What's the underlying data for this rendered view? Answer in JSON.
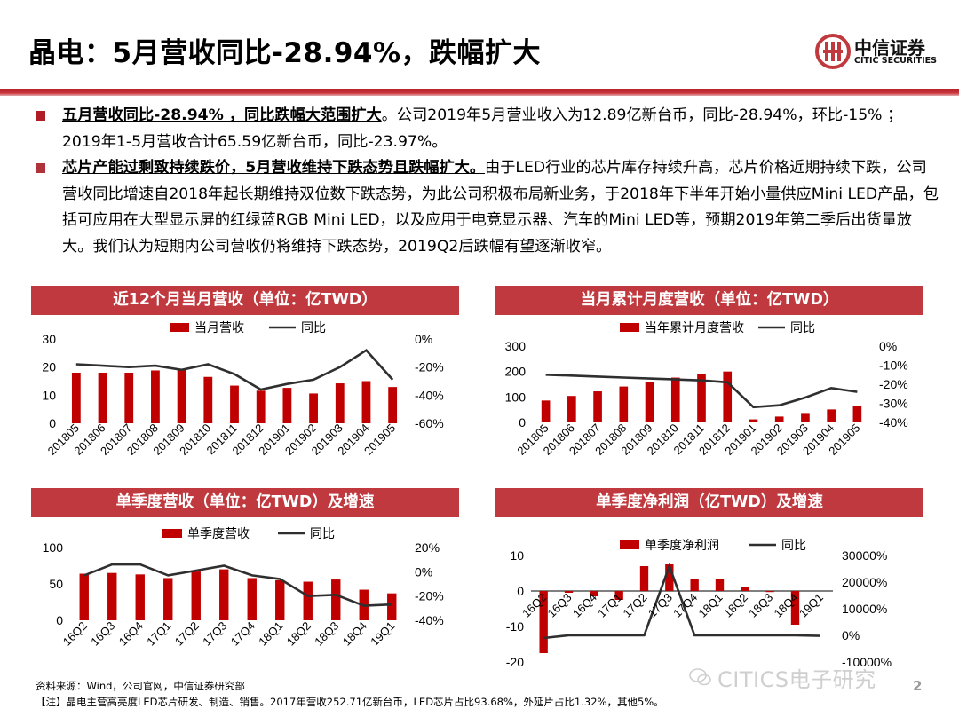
{
  "page": {
    "title": "晶电：5月营收同比-28.94%，跌幅扩大",
    "logo_cn": "中信证券",
    "logo_en": "CITIC SECURITIES",
    "page_number": "2",
    "watermark": "CITICS电子研究",
    "colors": {
      "brand_red": "#c0393e",
      "bar_red": "#c00000",
      "line_dark": "#2f2f2f"
    }
  },
  "bullets": [
    {
      "bold": "五月营收同比-28.94% ，同比跌幅大范围扩大",
      "text": "。公司2019年5月营业收入为12.89亿新台币，同比-28.94%，环比-15% ； 2019年1-5月营收合计65.59亿新台币，同比-23.97%。"
    },
    {
      "bold": "芯片产能过剩致持续跌价，5月营收维持下跌态势且跌幅扩大。",
      "text": "由于LED行业的芯片库存持续升高，芯片价格近期持续下跌，公司营收同比增速自2018年起长期维持双位数下跌态势，为此公司积极布局新业务，于2018年下半年开始小量供应Mini LED产品，包括可应用在大型显示屏的红绿蓝RGB Mini LED，以及应用于电竞显示器、汽车的Mini LED等，预期2019年第二季后出货量放大。我们认为短期内公司营收仍将维持下跌态势，2019Q2后跌幅有望逐渐收窄。"
    }
  ],
  "footer": {
    "source": "资料来源：Wind，公司官网，中信证券研究部",
    "note": "【注】晶电主营高亮度LED芯片研发、制造、销售。2017年营收252.71亿新台币，LED芯片占比93.68%，外延片占比1.32%，其他5%。"
  },
  "chart_data": [
    {
      "type": "bar",
      "title": "近12个月当月营收（单位：亿TWD）",
      "categories": [
        "201805",
        "201806",
        "201807",
        "201808",
        "201809",
        "201810",
        "201811",
        "201812",
        "201901",
        "201902",
        "201903",
        "201904",
        "201905"
      ],
      "series": [
        {
          "name": "当月营收",
          "type": "bar",
          "axis": "left",
          "values": [
            18.0,
            18.0,
            18.0,
            18.8,
            19.2,
            16.5,
            13.4,
            11.6,
            12.6,
            10.6,
            14.2,
            15.0,
            12.9
          ]
        },
        {
          "name": "同比",
          "type": "line",
          "axis": "right",
          "values": [
            -18,
            -19,
            -20,
            -19,
            -22,
            -18,
            -25,
            -36,
            -32,
            -29,
            -20,
            -8,
            -29
          ]
        }
      ],
      "ylim_left": [
        0,
        30
      ],
      "yticks_left": [
        "0",
        "10",
        "20",
        "30"
      ],
      "ylim_right": [
        -60,
        0
      ],
      "yticks_right": [
        "-60%",
        "-40%",
        "-20%",
        "0%"
      ],
      "legend": "top"
    },
    {
      "type": "bar",
      "title": "当月累计月度营收（单位：亿TWD）",
      "categories": [
        "201805",
        "201806",
        "201807",
        "201808",
        "201809",
        "201810",
        "201811",
        "201812",
        "201901",
        "201902",
        "201903",
        "201904",
        "201905"
      ],
      "series": [
        {
          "name": "当年累计月度营收",
          "type": "bar",
          "axis": "left",
          "values": [
            86,
            104,
            122,
            141,
            160,
            176,
            189,
            200,
            12,
            23,
            37,
            51,
            65
          ]
        },
        {
          "name": "同比",
          "type": "line",
          "axis": "right",
          "values": [
            -15,
            -15.5,
            -16,
            -16.5,
            -17,
            -17.5,
            -18,
            -19,
            -32,
            -31,
            -27,
            -22,
            -24
          ]
        }
      ],
      "ylim_left": [
        0,
        300
      ],
      "yticks_left": [
        "0",
        "100",
        "200",
        "300"
      ],
      "ylim_right": [
        -40,
        0
      ],
      "yticks_right": [
        "-40%",
        "-30%",
        "-20%",
        "-10%",
        "0%"
      ],
      "legend": "top"
    },
    {
      "type": "bar",
      "title": "单季度营收（单位：亿TWD）及增速",
      "categories": [
        "16Q2",
        "16Q3",
        "16Q4",
        "17Q1",
        "17Q2",
        "17Q3",
        "17Q4",
        "18Q1",
        "18Q2",
        "18Q3",
        "18Q4",
        "19Q1"
      ],
      "series": [
        {
          "name": "单季度营收",
          "type": "bar",
          "axis": "left",
          "values": [
            64,
            65,
            63,
            58,
            67,
            70,
            58,
            55,
            53,
            56,
            42,
            37
          ]
        },
        {
          "name": "同比",
          "type": "line",
          "axis": "right",
          "values": [
            -3,
            6,
            6,
            -3,
            1,
            5,
            -3,
            -6,
            -20,
            -19,
            -28,
            -27
          ]
        }
      ],
      "ylim_left": [
        0,
        100
      ],
      "yticks_left": [
        "0",
        "50",
        "100"
      ],
      "ylim_right": [
        -40,
        20
      ],
      "yticks_right": [
        "-40%",
        "-20%",
        "0%",
        "20%"
      ],
      "legend": "top"
    },
    {
      "type": "bar",
      "title": "单季度净利润（亿TWD）及增速",
      "categories": [
        "16Q2",
        "16Q3",
        "16Q4",
        "17Q1",
        "17Q2",
        "17Q3",
        "17Q4",
        "18Q1",
        "18Q2",
        "18Q3",
        "18Q4",
        "19Q1"
      ],
      "series": [
        {
          "name": "单季度净利润",
          "type": "bar",
          "axis": "left",
          "values": [
            -17.5,
            -0.5,
            -1.5,
            -2.5,
            7.0,
            7.5,
            3.5,
            3.5,
            1.0,
            -0.3,
            -9.5,
            null
          ]
        },
        {
          "name": "同比",
          "type": "line",
          "axis": "right",
          "values": [
            -1000,
            0,
            0,
            0,
            0,
            26000,
            0,
            0,
            0,
            0,
            0,
            -200
          ]
        }
      ],
      "ylim_left": [
        -20,
        10
      ],
      "yticks_left": [
        "-20",
        "-10",
        "0",
        "10"
      ],
      "ylim_right": [
        -10000,
        30000
      ],
      "yticks_right": [
        "-10000%",
        "0%",
        "10000%",
        "20000%",
        "30000%"
      ],
      "legend": "top"
    }
  ]
}
